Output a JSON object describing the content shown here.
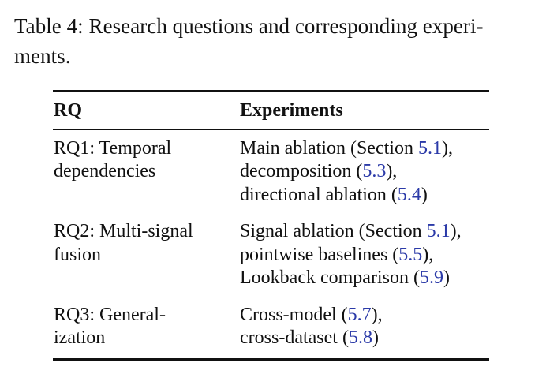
{
  "caption": {
    "line1": "Table 4: Research questions and corresponding experi-",
    "line2": "ments."
  },
  "table": {
    "headers": {
      "rq": "RQ",
      "experiments": "Experiments"
    },
    "rows": [
      {
        "rq_lines": [
          "RQ1: Temporal",
          "dependencies"
        ],
        "exp_lines": [
          {
            "pre": "Main ablation (Section ",
            "ref": "5.1",
            "post": "),"
          },
          {
            "pre": "decomposition (",
            "ref": "5.3",
            "post": "),"
          },
          {
            "pre": "directional ablation (",
            "ref": "5.4",
            "post": ")"
          }
        ]
      },
      {
        "rq_lines": [
          "RQ2: Multi-signal",
          "fusion"
        ],
        "exp_lines": [
          {
            "pre": "Signal ablation (Section ",
            "ref": "5.1",
            "post": "),"
          },
          {
            "pre": "pointwise baselines (",
            "ref": "5.5",
            "post": "),"
          },
          {
            "pre": "Lookback comparison (",
            "ref": "5.9",
            "post": ")"
          }
        ]
      },
      {
        "rq_lines": [
          "RQ3: General-",
          "ization"
        ],
        "exp_lines": [
          {
            "pre": "Cross-model (",
            "ref": "5.7",
            "post": "),"
          },
          {
            "pre": "cross-dataset (",
            "ref": "5.8",
            "post": ")"
          }
        ]
      }
    ],
    "colors": {
      "reference_link": "#2b3aa8",
      "text": "#111111"
    }
  }
}
